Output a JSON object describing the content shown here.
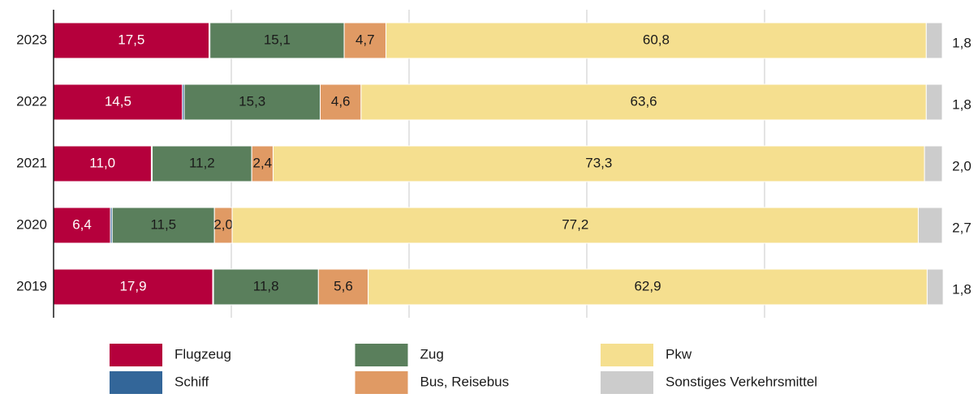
{
  "chart_data": {
    "type": "stacked-barh",
    "categories": [
      "2023",
      "2022",
      "2021",
      "2020",
      "2019"
    ],
    "series": [
      {
        "name": "Flugzeug",
        "color": "#b5003c",
        "values": [
          17.5,
          14.5,
          11.0,
          6.4,
          17.9
        ],
        "value_labels": [
          "17,5",
          "14,5",
          "11,0",
          "6,4",
          "17,9"
        ]
      },
      {
        "name": "Schiff",
        "color": "#336699",
        "values": [
          0.1,
          0.2,
          0.1,
          0.2,
          0.1
        ]
      },
      {
        "name": "Zug",
        "color": "#5a7f5c",
        "values": [
          15.1,
          15.3,
          11.2,
          11.5,
          11.8
        ],
        "value_labels": [
          "15,1",
          "15,3",
          "11,2",
          "11,5",
          "11,8"
        ]
      },
      {
        "name": "Bus, Reisebus",
        "color": "#e09a64",
        "values": [
          4.7,
          4.6,
          2.4,
          2.0,
          5.6
        ],
        "value_labels": [
          "4,7",
          "4,6",
          "2,4",
          "2,0",
          "5,6"
        ]
      },
      {
        "name": "Pkw",
        "color": "#f5df8f",
        "values": [
          60.8,
          63.6,
          73.3,
          77.2,
          62.9
        ],
        "value_labels": [
          "60,8",
          "63,6",
          "73,3",
          "77,2",
          "62,9"
        ]
      },
      {
        "name": "Sonstiges Verkehrsmittel",
        "color": "#cccccc",
        "values": [
          1.8,
          1.8,
          2.0,
          2.7,
          1.8
        ],
        "value_labels": [
          "1,8",
          "1,8",
          "2,0",
          "2,7",
          "1,8"
        ]
      }
    ],
    "xlim": [
      0,
      100
    ],
    "xticks": [
      20,
      40,
      60,
      80
    ],
    "grid": true
  }
}
